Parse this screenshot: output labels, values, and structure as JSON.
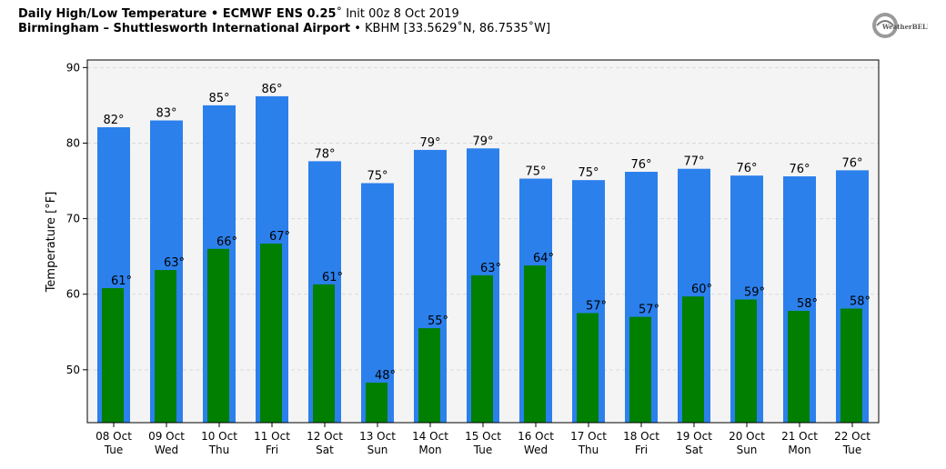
{
  "header": {
    "line1_bold": "Daily High/Low Temperature • ECMWF ENS 0.25",
    "line1_deg": "˚",
    "line1_rest": " Init 00z 8 Oct 2019",
    "line2_bold": "Birmingham – Shuttlesworth International Airport",
    "line2_rest": " • KBHM [33.5629˚N, 86.7535˚W]"
  },
  "logo": {
    "text": "WeatherBELL",
    "icon": "weatherbell-logo"
  },
  "colors": {
    "high": "#2b80ec",
    "low": "#007f00",
    "plot_bg": "#f4f4f4",
    "grid": "#d9d9d9"
  },
  "chart_data": {
    "type": "bar",
    "title": "Daily High/Low Temperature • ECMWF ENS 0.25˚ Init 00z 8 Oct 2019",
    "subtitle": "Birmingham – Shuttlesworth International Airport • KBHM [33.5629˚N, 86.7535˚W]",
    "xlabel": "",
    "ylabel": "Temperature [°F]",
    "ylim": [
      43,
      91
    ],
    "yticks": [
      50,
      60,
      70,
      80,
      90
    ],
    "grid": true,
    "categories": [
      [
        "08 Oct",
        "Tue"
      ],
      [
        "09 Oct",
        "Wed"
      ],
      [
        "10 Oct",
        "Thu"
      ],
      [
        "11 Oct",
        "Fri"
      ],
      [
        "12 Oct",
        "Sat"
      ],
      [
        "13 Oct",
        "Sun"
      ],
      [
        "14 Oct",
        "Mon"
      ],
      [
        "15 Oct",
        "Tue"
      ],
      [
        "16 Oct",
        "Wed"
      ],
      [
        "17 Oct",
        "Thu"
      ],
      [
        "18 Oct",
        "Fri"
      ],
      [
        "19 Oct",
        "Sat"
      ],
      [
        "20 Oct",
        "Sun"
      ],
      [
        "21 Oct",
        "Mon"
      ],
      [
        "22 Oct",
        "Tue"
      ]
    ],
    "series": [
      {
        "key": "high",
        "values": [
          82.1,
          83.0,
          85.0,
          86.2,
          77.6,
          74.7,
          79.1,
          79.3,
          75.3,
          75.1,
          76.2,
          76.6,
          75.7,
          75.6,
          76.4
        ],
        "labels": [
          "82°",
          "83°",
          "85°",
          "86°",
          "78°",
          "75°",
          "79°",
          "79°",
          "75°",
          "75°",
          "76°",
          "77°",
          "76°",
          "76°",
          "76°"
        ]
      },
      {
        "key": "low",
        "values": [
          60.8,
          63.2,
          66.0,
          66.7,
          61.3,
          48.3,
          55.5,
          62.5,
          63.8,
          57.5,
          57.0,
          59.7,
          59.3,
          57.8,
          58.1
        ],
        "labels": [
          "61°",
          "63°",
          "66°",
          "67°",
          "61°",
          "48°",
          "55°",
          "63°",
          "64°",
          "57°",
          "57°",
          "60°",
          "59°",
          "58°",
          "58°"
        ]
      }
    ]
  }
}
